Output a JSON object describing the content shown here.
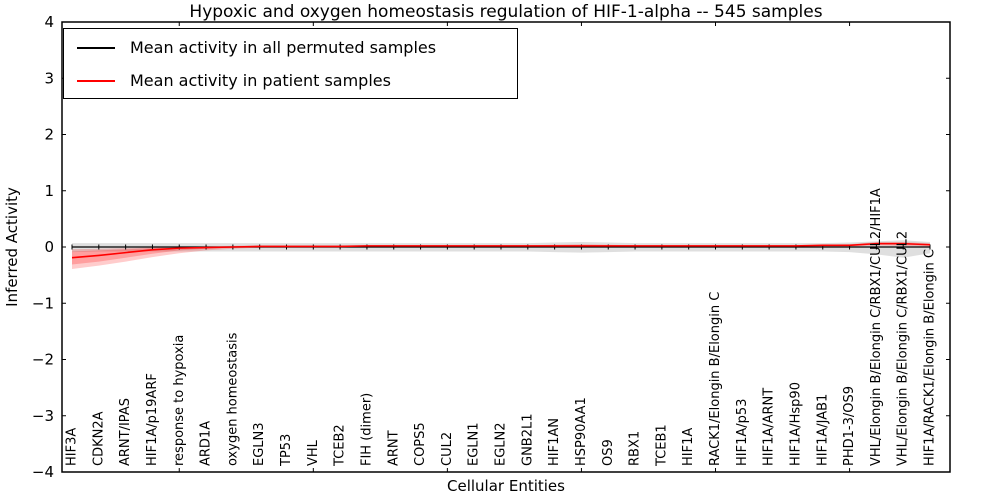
{
  "chart_data": {
    "type": "line",
    "title": "Hypoxic and oxygen homeostasis regulation of HIF-1-alpha -- 545 samples",
    "xlabel": "Cellular Entities",
    "ylabel": "Inferred Activity",
    "ylim": [
      -4,
      4
    ],
    "grid": false,
    "legend_position": "upper left",
    "yticks": [
      {
        "value": 4,
        "label": "4"
      },
      {
        "value": 3,
        "label": "3"
      },
      {
        "value": 2,
        "label": "2"
      },
      {
        "value": 1,
        "label": "1"
      },
      {
        "value": 0,
        "label": "0"
      },
      {
        "value": -1,
        "label": "−1"
      },
      {
        "value": -2,
        "label": "−2"
      },
      {
        "value": -3,
        "label": "−3"
      },
      {
        "value": -4,
        "label": "−4"
      }
    ],
    "xtick_entity_positions": [
      5,
      10,
      15,
      20,
      25,
      30
    ],
    "categories": [
      "HIF3A",
      "CDKN2A",
      "ARNT/IPAS",
      "HIF1A/p19ARF",
      "response to hypoxia",
      "ARD1A",
      "oxygen homeostasis",
      "EGLN3",
      "TP53",
      "VHL",
      "TCEB2",
      "FIH (dimer)",
      "ARNT",
      "COPS5",
      "CUL2",
      "EGLN1",
      "EGLN2",
      "GNB2L1",
      "HIF1AN",
      "HSP90AA1",
      "OS9",
      "RBX1",
      "TCEB1",
      "HIF1A",
      "RACK1/Elongin B/Elongin C",
      "HIF1A/p53",
      "HIF1A/ARNT",
      "HIF1A/Hsp90",
      "HIF1A/JAB1",
      "PHD1-3/OS9",
      "VHL/Elongin B/Elongin C/RBX1/CUL2/HIF1A",
      "VHL/Elongin B/Elongin C/RBX1/CUL2",
      "HIF1A/RACK1/Elongin B/Elongin C"
    ],
    "series": [
      {
        "name": "Mean activity in all permuted samples",
        "color": "#000000",
        "line_width": 1.3,
        "marker": "vtick",
        "values": [
          0,
          0,
          0,
          0,
          0,
          0,
          0,
          0,
          0,
          0,
          0,
          0,
          0,
          0,
          0,
          0,
          0,
          0,
          0,
          0,
          0,
          0,
          0,
          0,
          0,
          0,
          0,
          0,
          0,
          0,
          0,
          0,
          0
        ],
        "bands": [
          {
            "color": "rgba(128,128,128,0.25)",
            "upper": [
              0.07,
              0.07,
              0.07,
              0.07,
              0.07,
              0.07,
              0.07,
              0.07,
              0.07,
              0.07,
              0.07,
              0.07,
              0.07,
              0.07,
              0.07,
              0.07,
              0.07,
              0.07,
              0.08,
              0.09,
              0.08,
              0.07,
              0.07,
              0.07,
              0.07,
              0.07,
              0.07,
              0.07,
              0.07,
              0.08,
              0.1,
              0.12,
              0.09
            ],
            "lower": [
              -0.09,
              -0.08,
              -0.08,
              -0.08,
              -0.08,
              -0.08,
              -0.08,
              -0.08,
              -0.08,
              -0.08,
              -0.08,
              -0.08,
              -0.08,
              -0.08,
              -0.08,
              -0.08,
              -0.08,
              -0.08,
              -0.09,
              -0.1,
              -0.09,
              -0.08,
              -0.08,
              -0.08,
              -0.08,
              -0.08,
              -0.08,
              -0.08,
              -0.08,
              -0.09,
              -0.13,
              -0.19,
              -0.11
            ]
          }
        ]
      },
      {
        "name": "Mean activity in patient samples",
        "color": "#ff0000",
        "line_width": 1.6,
        "marker": "none",
        "values": [
          -0.19,
          -0.15,
          -0.1,
          -0.05,
          -0.02,
          -0.01,
          0.0,
          0.01,
          0.01,
          0.01,
          0.01,
          0.02,
          0.02,
          0.02,
          0.02,
          0.02,
          0.02,
          0.02,
          0.02,
          0.02,
          0.02,
          0.02,
          0.02,
          0.02,
          0.02,
          0.02,
          0.02,
          0.02,
          0.03,
          0.03,
          0.06,
          0.06,
          0.04
        ],
        "bands": [
          {
            "color": "rgba(255,0,0,0.20)",
            "upper": [
              -0.04,
              -0.03,
              -0.02,
              -0.01,
              0.0,
              0.01,
              0.02,
              0.03,
              0.03,
              0.03,
              0.03,
              0.03,
              0.03,
              0.03,
              0.03,
              0.03,
              0.03,
              0.03,
              0.04,
              0.05,
              0.04,
              0.03,
              0.03,
              0.03,
              0.03,
              0.03,
              0.03,
              0.03,
              0.04,
              0.05,
              0.09,
              0.09,
              0.07
            ],
            "lower": [
              -0.39,
              -0.33,
              -0.26,
              -0.18,
              -0.11,
              -0.06,
              -0.03,
              -0.01,
              0.0,
              0.0,
              0.0,
              0.0,
              0.0,
              0.0,
              0.0,
              0.0,
              0.0,
              0.0,
              0.0,
              0.0,
              0.0,
              0.0,
              0.0,
              0.0,
              0.0,
              0.0,
              0.0,
              0.0,
              0.01,
              0.01,
              0.03,
              0.02,
              0.01
            ]
          },
          {
            "color": "rgba(255,0,0,0.22)",
            "upper": [
              -0.08,
              -0.06,
              -0.04,
              -0.02,
              -0.01,
              0.0,
              0.01,
              0.02,
              0.02,
              0.02,
              0.02,
              0.02,
              0.02,
              0.02,
              0.02,
              0.02,
              0.02,
              0.02,
              0.03,
              0.03,
              0.03,
              0.02,
              0.02,
              0.02,
              0.02,
              0.02,
              0.02,
              0.02,
              0.03,
              0.04,
              0.07,
              0.07,
              0.05
            ],
            "lower": [
              -0.31,
              -0.26,
              -0.19,
              -0.12,
              -0.06,
              -0.03,
              -0.01,
              0.0,
              0.01,
              0.01,
              0.01,
              0.01,
              0.01,
              0.01,
              0.01,
              0.01,
              0.01,
              0.01,
              0.01,
              0.01,
              0.01,
              0.01,
              0.01,
              0.01,
              0.01,
              0.01,
              0.01,
              0.01,
              0.02,
              0.02,
              0.04,
              0.04,
              0.03
            ]
          }
        ]
      }
    ]
  }
}
